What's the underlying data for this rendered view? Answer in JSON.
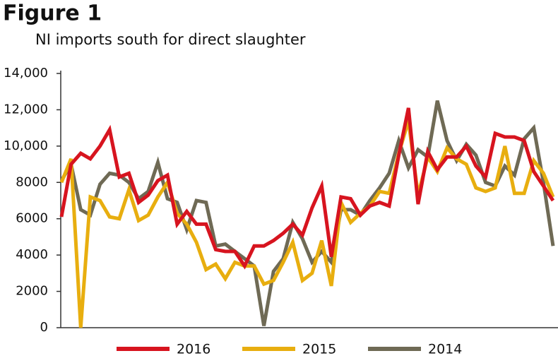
{
  "chart_data": {
    "type": "line",
    "title": "Figure 1",
    "subtitle": "NI imports south for direct slaughter",
    "ylim": [
      0,
      14000
    ],
    "yticks": [
      0,
      2000,
      4000,
      6000,
      8000,
      {
        "value": 10000,
        "label": "10,000"
      },
      {
        "value": 12000,
        "label": "12,000"
      },
      {
        "value": 14000,
        "label": "14,000"
      }
    ],
    "grid": false,
    "series": [
      {
        "name": "2016",
        "color": "#d7141f",
        "values": [
          6100,
          9000,
          9600,
          9300,
          10000,
          10900,
          8300,
          8500,
          6900,
          7300,
          8100,
          8400,
          5700,
          6400,
          5700,
          5700,
          4300,
          4200,
          4200,
          3400,
          4500,
          4500,
          4800,
          5200,
          5700,
          5100,
          6600,
          7800,
          3900,
          7200,
          7100,
          6200,
          6700,
          6900,
          6700,
          9500,
          12100,
          6800,
          9700,
          8700,
          9400,
          9400,
          10000,
          8900,
          8300,
          10700,
          10500,
          10500,
          10300,
          8600,
          7800,
          7000
        ]
      },
      {
        "name": "2015",
        "color": "#e8ae0f",
        "values": [
          8000,
          9300,
          0,
          7200,
          7000,
          6100,
          6000,
          7600,
          5900,
          6200,
          7200,
          8000,
          6300,
          5700,
          4700,
          3200,
          3500,
          2700,
          3600,
          3400,
          3400,
          2400,
          2600,
          3600,
          4700,
          2600,
          3000,
          4800,
          2300,
          6900,
          5800,
          6300,
          6700,
          7500,
          7400,
          9600,
          11400,
          7300,
          9400,
          8600,
          9900,
          9300,
          9000,
          7700,
          7500,
          7700,
          10000,
          7400,
          7400,
          9200,
          8500,
          7200
        ]
      },
      {
        "name": "2014",
        "color": "#6f6a55",
        "values": [
          8100,
          9000,
          6500,
          6200,
          7900,
          8500,
          8400,
          8000,
          7100,
          7500,
          9100,
          7100,
          6900,
          5400,
          7000,
          6900,
          4500,
          4600,
          4200,
          3800,
          3400,
          100,
          3100,
          3800,
          5800,
          4900,
          3600,
          4200,
          3600,
          6500,
          6500,
          6200,
          7000,
          7700,
          8500,
          10300,
          8800,
          9800,
          9400,
          12500,
          10300,
          9200,
          10100,
          9500,
          8000,
          7800,
          8900,
          8400,
          10400,
          11000,
          8000,
          4500
        ]
      }
    ]
  }
}
